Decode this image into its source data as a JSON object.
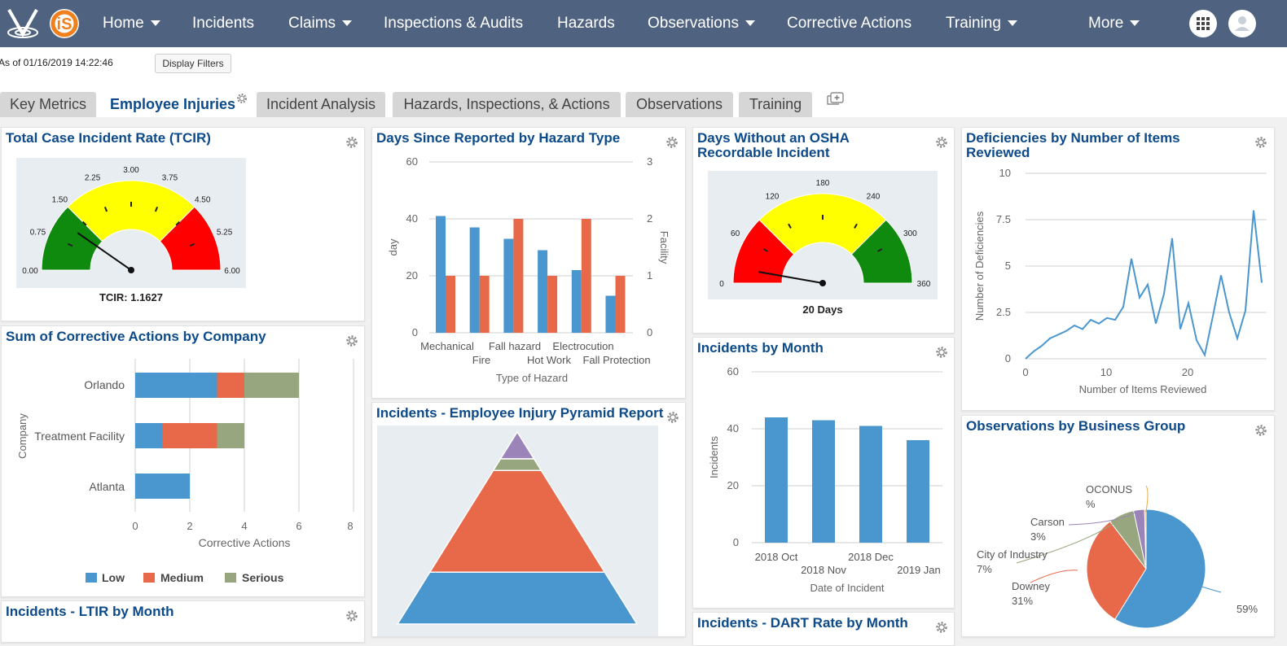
{
  "nav": {
    "home": "Home",
    "incidents": "Incidents",
    "claims": "Claims",
    "inspections": "Inspections & Audits",
    "hazards": "Hazards",
    "observations": "Observations",
    "corrective": "Corrective Actions",
    "training": "Training",
    "more": "More"
  },
  "toolbar": {
    "as_of": "As of 01/16/2019 14:22:46",
    "display_filters": "Display Filters"
  },
  "tabs": [
    "Key Metrics",
    "Employee Injuries",
    "Incident Analysis",
    "Hazards, Inspections, & Actions",
    "Observations",
    "Training"
  ],
  "widgets": {
    "tcir": {
      "title": "Total Case Incident Rate (TCIR)",
      "ticks": [
        "0.00",
        "0.75",
        "1.50",
        "2.25",
        "3.00",
        "3.75",
        "4.50",
        "5.25",
        "6.00"
      ],
      "label": "TCIR: 1.1627",
      "value": 1.1627,
      "max": 6
    },
    "hazard_days": {
      "title": "Days Since Reported by Hazard Type",
      "y_ticks": [
        "60",
        "40",
        "20",
        "0"
      ],
      "y2_ticks": [
        "3",
        "2",
        "1",
        "0"
      ],
      "ylabel": "day",
      "y2label": "Facility",
      "xlabel": "Type of Hazard",
      "categories_top": [
        "Mechanical",
        "Fall hazard",
        "Electrocution"
      ],
      "categories_bottom": [
        "Fire",
        "Hot Work",
        "Fall Protection"
      ]
    },
    "osha": {
      "title": "Days Without an OSHA Recordable Incident",
      "ticks": [
        "0",
        "60",
        "120",
        "180",
        "240",
        "300",
        "360"
      ],
      "label": "20 Days",
      "value": 20,
      "max": 360
    },
    "deficiencies": {
      "title": "Deficiencies by Number of Items Reviewed",
      "y_ticks": [
        "10",
        "7.5",
        "5",
        "2.5",
        "0"
      ],
      "x_ticks": [
        "0",
        "10",
        "20"
      ],
      "ylabel": "Number of Deficiencies",
      "xlabel": "Number of Items Reviewed"
    },
    "corrective": {
      "title": "Sum of Corrective Actions by Company",
      "categories": [
        "Orlando",
        "Treatment Facility",
        "Atlanta"
      ],
      "x_ticks": [
        "0",
        "2",
        "4",
        "6",
        "8"
      ],
      "ylabel": "Company",
      "xlabel": "Corrective Actions",
      "legend": [
        "Low",
        "Medium",
        "Serious"
      ]
    },
    "pyramid": {
      "title": "Incidents - Employee Injury Pyramid Report"
    },
    "incidents_month": {
      "title": "Incidents by Month",
      "y_ticks": [
        "60",
        "40",
        "20",
        "0"
      ],
      "ylabel": "Incidents",
      "xlabel": "Date of Incident",
      "x_top": [
        "2018 Oct",
        "2018 Dec"
      ],
      "x_bottom": [
        "2018 Nov",
        "2019 Jan"
      ]
    },
    "observations": {
      "title": "Observations by Business Group",
      "labels": [
        {
          "name": "OCONUS",
          "pct": "%"
        },
        {
          "name": "Carson",
          "pct": "3%"
        },
        {
          "name": "City of Industry",
          "pct": "7%"
        },
        {
          "name": "Downey",
          "pct": "31%"
        },
        {
          "name": "",
          "pct": "59%"
        }
      ]
    },
    "ltir": {
      "title": "Incidents - LTIR by Month"
    },
    "dart": {
      "title": "Incidents - DART Rate by Month"
    }
  },
  "chart_data": [
    {
      "type": "bar",
      "title": "Days Since Reported by Hazard Type",
      "categories": [
        "Mechanical",
        "Fire",
        "Fall hazard",
        "Hot Work",
        "Electrocution",
        "Fall Protection"
      ],
      "series": [
        {
          "values": [
            41,
            37,
            33,
            29,
            22,
            13
          ],
          "color": "#4a96ce"
        },
        {
          "values": [
            1,
            1,
            2,
            1,
            2,
            1
          ],
          "color": "#e8694a"
        }
      ],
      "xlabel": "Type of Hazard",
      "ylabel": "day",
      "y2label": "Facility",
      "ylim": [
        0,
        60
      ],
      "y2lim": [
        0,
        3
      ]
    },
    {
      "type": "bar",
      "title": "Sum of Corrective Actions by Company",
      "orientation": "horizontal",
      "stacked": true,
      "categories": [
        "Orlando",
        "Treatment Facility",
        "Atlanta"
      ],
      "series": [
        {
          "name": "Low",
          "values": [
            3,
            1,
            2
          ],
          "color": "#4a96ce"
        },
        {
          "name": "Medium",
          "values": [
            1,
            2,
            0
          ],
          "color": "#e8694a"
        },
        {
          "name": "Serious",
          "values": [
            2,
            1,
            0
          ],
          "color": "#98a67f"
        }
      ],
      "xlabel": "Corrective Actions",
      "ylabel": "Company",
      "xlim": [
        0,
        8
      ]
    },
    {
      "type": "bar",
      "title": "Incidents by Month",
      "categories": [
        "2018 Oct",
        "2018 Nov",
        "2018 Dec",
        "2019 Jan"
      ],
      "values": [
        44,
        43,
        41,
        36
      ],
      "color": "#4a96ce",
      "xlabel": "Date of Incident",
      "ylabel": "Incidents",
      "ylim": [
        0,
        60
      ]
    },
    {
      "type": "line",
      "title": "Deficiencies by Number of Items Reviewed",
      "x": [
        0,
        1,
        2,
        3,
        4,
        5,
        6,
        7,
        8,
        9,
        10,
        11,
        12,
        13,
        14,
        15,
        16,
        17,
        18,
        19,
        20,
        21,
        22,
        23,
        24,
        25,
        26,
        27,
        28,
        29
      ],
      "y": [
        0,
        0.4,
        0.7,
        1.1,
        1.3,
        1.5,
        1.8,
        1.6,
        2.1,
        1.9,
        2.2,
        2.1,
        2.8,
        5.4,
        3.3,
        4.0,
        1.9,
        3.5,
        6.5,
        1.6,
        3.0,
        1.0,
        0.2,
        2.3,
        4.5,
        2.5,
        1.1,
        2.6,
        8.0,
        4.1
      ],
      "color": "#4a96ce",
      "xlabel": "Number of Items Reviewed",
      "ylabel": "Number of Deficiencies",
      "xlim": [
        0,
        29
      ],
      "ylim": [
        0,
        10
      ]
    },
    {
      "type": "pie",
      "title": "Observations by Business Group",
      "slices": [
        {
          "label": "",
          "value": 59,
          "color": "#4a96ce"
        },
        {
          "label": "Downey",
          "value": 31,
          "color": "#e8694a"
        },
        {
          "label": "City of Industry",
          "value": 7,
          "color": "#98a67f"
        },
        {
          "label": "Carson",
          "value": 3,
          "color": "#9b85b8"
        },
        {
          "label": "OCONUS",
          "value": 0.4,
          "color": "#e8a84a"
        }
      ]
    },
    {
      "type": "area",
      "title": "Incidents - Employee Injury Pyramid Report",
      "layers": [
        {
          "value": 14,
          "color": "#9b85b8"
        },
        {
          "value": 6,
          "color": "#98a67f"
        },
        {
          "value": 53,
          "color": "#e8694a"
        },
        {
          "value": 27,
          "color": "#4a96ce"
        }
      ]
    }
  ]
}
